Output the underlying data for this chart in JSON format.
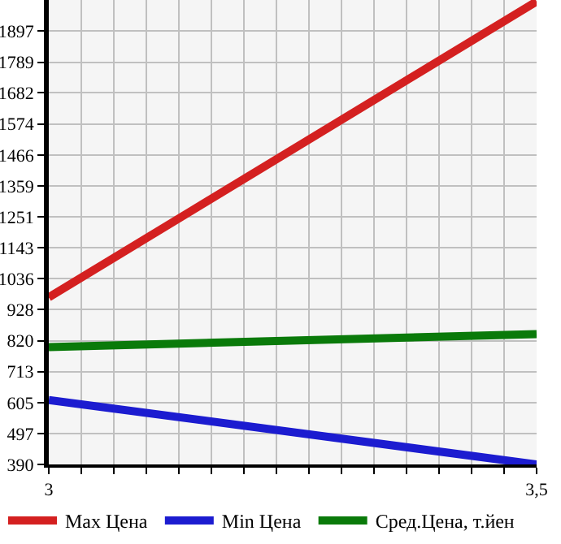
{
  "chart_data": {
    "type": "line",
    "x": [
      3,
      3.5
    ],
    "series": [
      {
        "name": "Max Цена",
        "color": "#d42020",
        "values": [
          971,
          2000
        ]
      },
      {
        "name": "Min Цена",
        "color": "#1c1cd0",
        "values": [
          614,
          390
        ]
      },
      {
        "name": "Сред.Цена, т.йен",
        "color": "#0a7a0a",
        "values": [
          798,
          843
        ]
      }
    ],
    "xlim": [
      3,
      3.5
    ],
    "xticks": [
      3,
      {
        "value": 3.0333,
        "label": null
      },
      {
        "value": 3.0667,
        "label": null
      },
      {
        "value": 3.1,
        "label": null
      },
      {
        "value": 3.1333,
        "label": null
      },
      {
        "value": 3.1667,
        "label": null
      },
      {
        "value": 3.2,
        "label": null
      },
      {
        "value": 3.2333,
        "label": null
      },
      {
        "value": 3.2667,
        "label": null
      },
      {
        "value": 3.3,
        "label": null
      },
      {
        "value": 3.3333,
        "label": null
      },
      {
        "value": 3.3667,
        "label": null
      },
      {
        "value": 3.4,
        "label": null
      },
      {
        "value": 3.4333,
        "label": null
      },
      {
        "value": 3.4667,
        "label": null
      },
      {
        "value": 3.5,
        "label": "3,5"
      }
    ],
    "ylim": [
      390,
      2005
    ],
    "yticks": [
      390,
      497,
      605,
      713,
      820,
      928,
      1036,
      1143,
      1251,
      1359,
      1466,
      1574,
      1682,
      1789,
      1897
    ],
    "grid": true,
    "legend": "bottom",
    "marker": "none",
    "line_style": "solid"
  }
}
